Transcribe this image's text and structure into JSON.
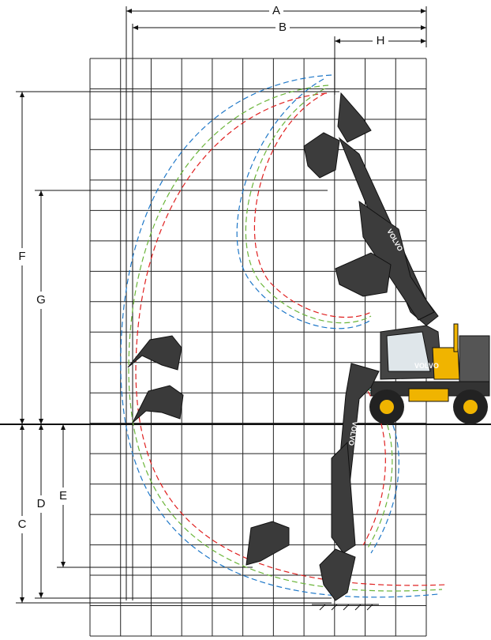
{
  "dimension_labels": {
    "A": "A",
    "B": "B",
    "H": "H",
    "F": "F",
    "G": "G",
    "C": "C",
    "D": "D",
    "E": "E"
  },
  "brand": "VOLVO"
}
